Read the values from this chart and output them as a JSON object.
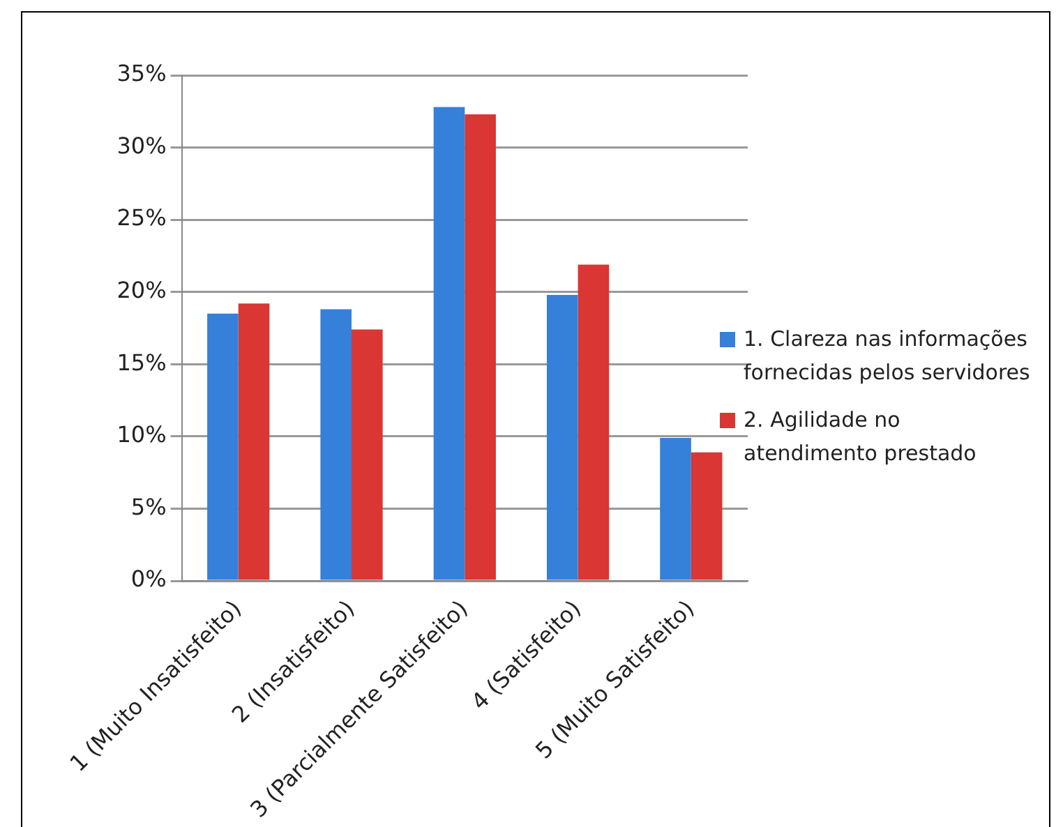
{
  "chart_data": {
    "type": "bar",
    "categories": [
      "1 (Muito Insatisfeito)",
      "2 (Insatisfeito)",
      "3 (Parcialmente Satisfeito)",
      "4 (Satisfeito)",
      "5 (Muito Satisfeito)"
    ],
    "series": [
      {
        "name": "1. Clareza nas informações fornecidas pelos servidores",
        "color": "#3580d8",
        "values": [
          18.5,
          18.8,
          32.8,
          19.8,
          9.9
        ]
      },
      {
        "name": "2. Agilidade no atendimento prestado",
        "color": "#da3633",
        "values": [
          19.2,
          17.4,
          32.3,
          21.9,
          8.9
        ]
      }
    ],
    "ylim": [
      0,
      35
    ],
    "yticks": [
      {
        "value": 0,
        "label": "0%"
      },
      {
        "value": 5,
        "label": "5%"
      },
      {
        "value": 10,
        "label": "10%"
      },
      {
        "value": 15,
        "label": "15%"
      },
      {
        "value": 20,
        "label": "20%"
      },
      {
        "value": 25,
        "label": "25%"
      },
      {
        "value": 30,
        "label": "30%"
      },
      {
        "value": 35,
        "label": "35%"
      }
    ],
    "grid": "y",
    "legend": "right"
  }
}
